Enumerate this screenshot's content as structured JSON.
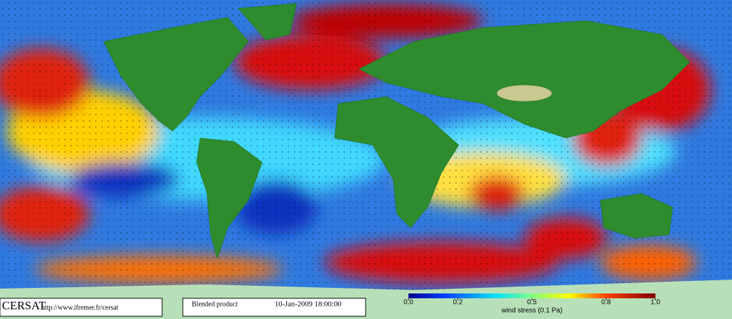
{
  "logo": "CERSAT",
  "url": "http://www.ifremer.fr/cersat",
  "product": "Blended product",
  "datetime": "10-Jan-2009 18:00:00",
  "colorbar": {
    "label": "wind stress (0.1 Pa)",
    "lim": [
      0,
      1
    ],
    "ticks": [
      {
        "value": 0,
        "label": "0.0"
      },
      0.2,
      0.5,
      0.8,
      {
        "value": 1,
        "label": "1.0"
      }
    ]
  }
}
